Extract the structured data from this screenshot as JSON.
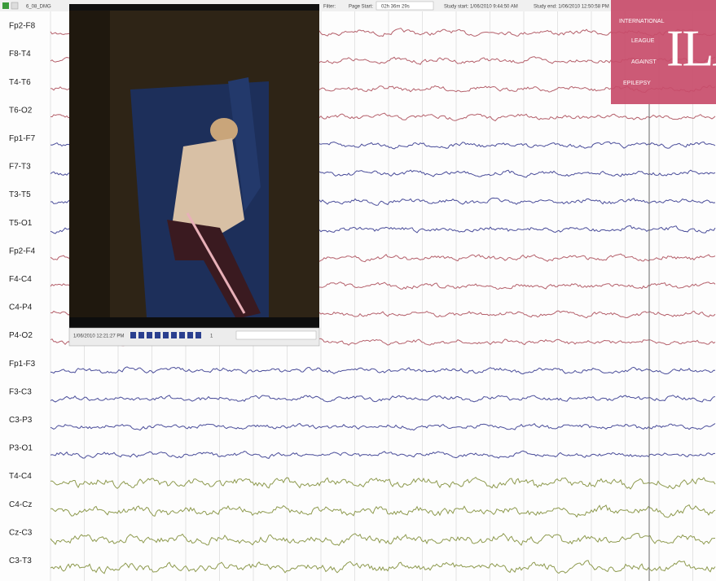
{
  "toolbar": {
    "file": "6_08_DMG",
    "filter_label": "Filter:",
    "page_start_label": "Page Start:",
    "page_start": "02h 36m 29s",
    "study_start": "Study start: 1/06/2010 9:44:50 AM",
    "study_end": "Study end: 1/06/2010 12:50:58 PM"
  },
  "channels": [
    "Fp2-F8",
    "F8-T4",
    "T4-T6",
    "T6-O2",
    "Fp1-F7",
    "F7-T3",
    "T3-T5",
    "T5-O1",
    "Fp2-F4",
    "F4-C4",
    "C4-P4",
    "P4-O2",
    "Fp1-F3",
    "F3-C3",
    "C3-P3",
    "P3-O1",
    "T4-C4",
    "C4-Cz",
    "Cz-C3",
    "C3-T3"
  ],
  "video": {
    "timestamp": "1/06/2010 12:21:27 PM",
    "page": "1"
  },
  "logo": {
    "lines": [
      "INTERNATIONAL",
      "LEAGUE",
      "AGAINST",
      "EPILEPSY"
    ],
    "mark": "ILAE"
  }
}
